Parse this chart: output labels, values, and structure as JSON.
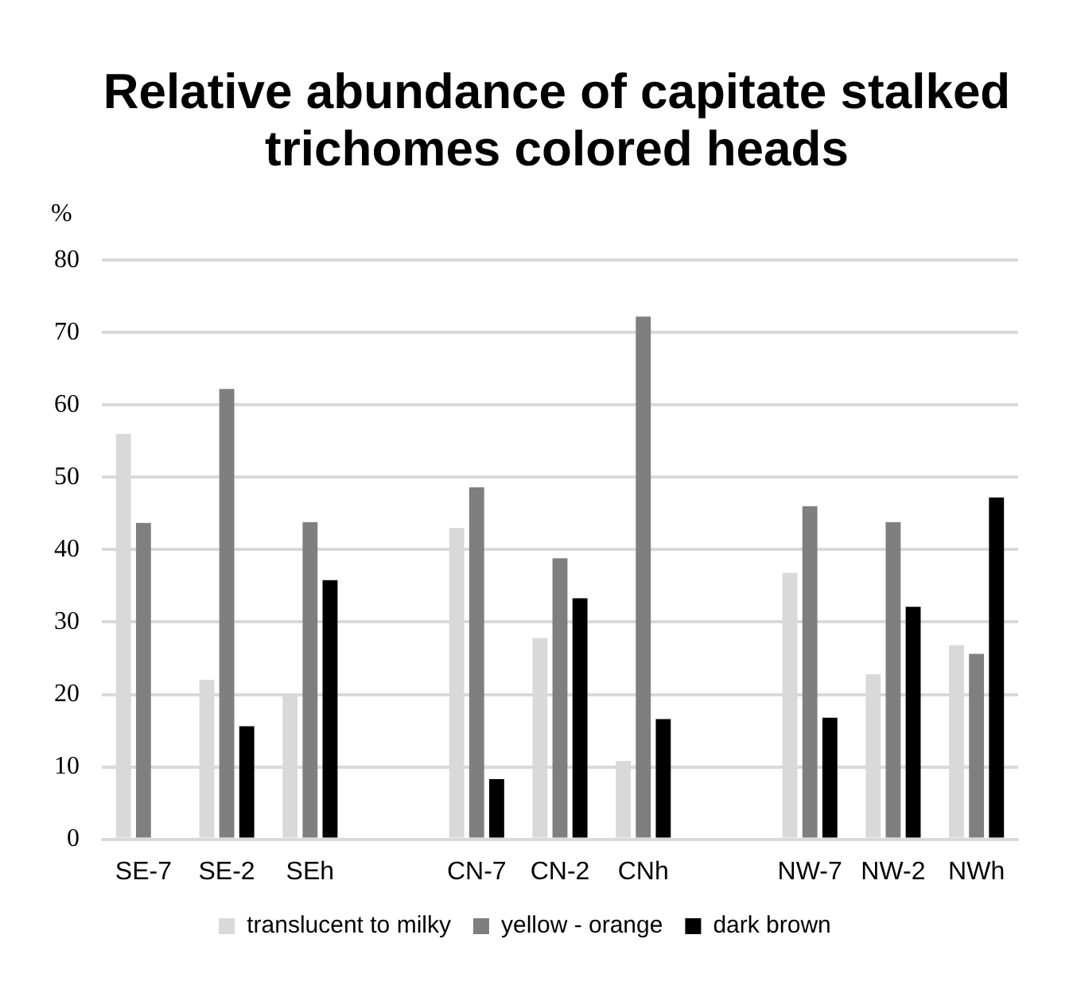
{
  "chart_data": {
    "type": "bar",
    "title": "Relative abundance of capitate stalked trichomes colored heads",
    "ylabel": "%",
    "categories": [
      "SE-7",
      "SE-2",
      "SEh",
      null,
      "CN-7",
      "CN-2",
      "CNh",
      null,
      "NW-7",
      "NW-2",
      "NWh"
    ],
    "series": [
      {
        "name": "translucent to milky",
        "color": "#d9d9d9",
        "values": [
          56,
          22,
          20,
          null,
          43,
          27.8,
          10.8,
          null,
          36.8,
          22.8,
          26.8
        ]
      },
      {
        "name": "yellow - orange",
        "color": "#7f7f7f",
        "values": [
          43.7,
          62.2,
          43.8,
          null,
          48.6,
          38.8,
          72.2,
          null,
          46,
          43.8,
          25.6
        ]
      },
      {
        "name": "dark brown",
        "color": "#000000",
        "values": [
          null,
          15.6,
          35.8,
          null,
          8.3,
          33.3,
          16.6,
          null,
          16.8,
          32.1,
          47.2
        ]
      }
    ],
    "ylim": [
      0,
      80
    ],
    "yticks": [
      0,
      10,
      20,
      30,
      40,
      50,
      60,
      70,
      80
    ],
    "grid": "y",
    "legend": "bottom"
  }
}
